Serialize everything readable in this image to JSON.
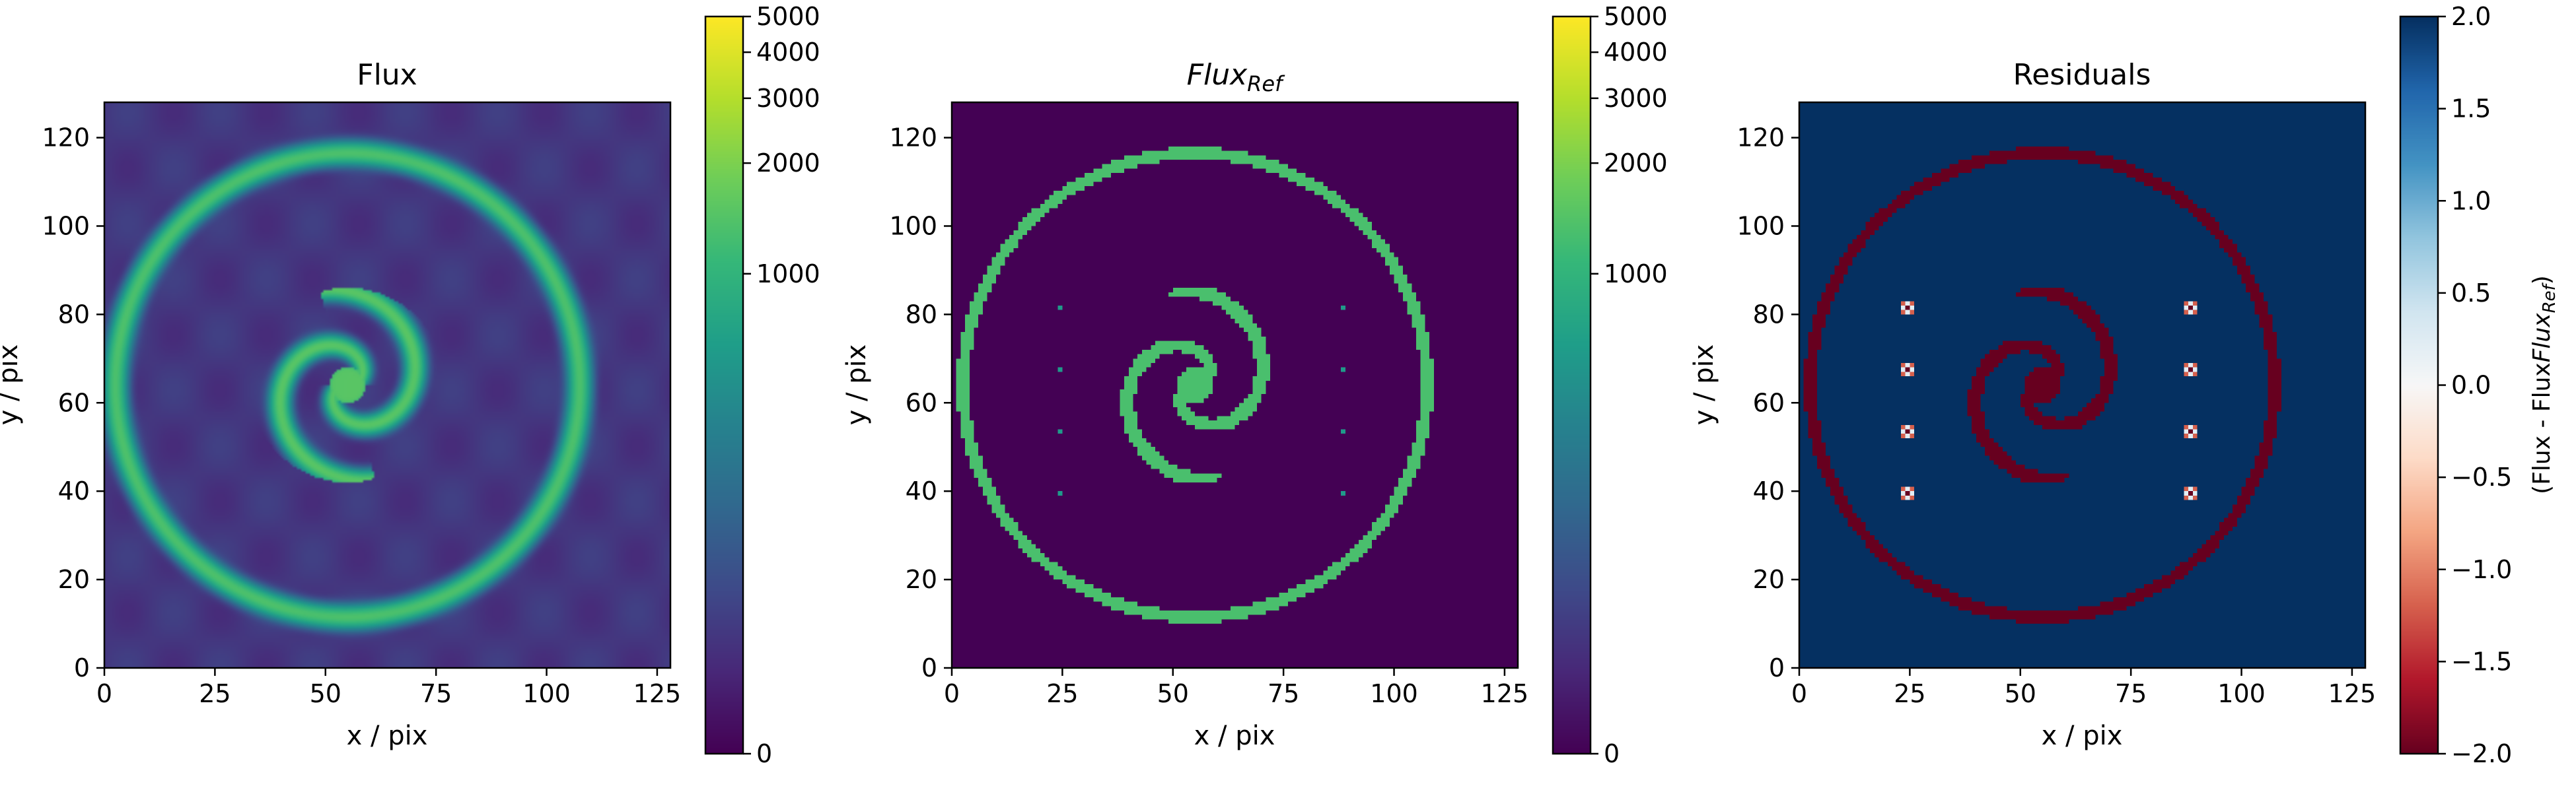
{
  "chart_data": [
    {
      "type": "heatmap",
      "title": "Flux",
      "xlabel": "x / pix",
      "ylabel": "y / pix",
      "xlim": [
        0,
        128
      ],
      "ylim": [
        0,
        128
      ],
      "xticks": [
        0,
        25,
        50,
        75,
        100,
        125
      ],
      "yticks": [
        0,
        20,
        40,
        60,
        80,
        100,
        120
      ],
      "colormap": "viridis",
      "scale": "asinh",
      "colorbar": {
        "range": [
          0,
          5000
        ],
        "ticks": [
          0,
          1000,
          2000,
          3000,
          4000,
          5000
        ],
        "label": ""
      },
      "image": {
        "description": "smoothed spiral galaxy model: outer ring plus two-armed inner spiral",
        "background_value": 80,
        "outer_ring": {
          "center": [
            55,
            64
          ],
          "radius": 52,
          "value": 1250
        },
        "spiral": {
          "center": [
            55,
            64
          ],
          "value": 1400,
          "arms": 2
        }
      }
    },
    {
      "type": "heatmap",
      "title": "Flux",
      "title_subscript": "Ref",
      "xlabel": "x / pix",
      "ylabel": "y / pix",
      "xlim": [
        0,
        128
      ],
      "ylim": [
        0,
        128
      ],
      "xticks": [
        0,
        25,
        50,
        75,
        100,
        125
      ],
      "yticks": [
        0,
        20,
        40,
        60,
        80,
        100,
        120
      ],
      "colormap": "viridis",
      "scale": "asinh",
      "colorbar": {
        "range": [
          0,
          5000
        ],
        "ticks": [
          0,
          1000,
          2000,
          3000,
          4000,
          5000
        ],
        "label": ""
      },
      "image": {
        "description": "reference pixel mask: outer ring, two-armed spiral and 8 isolated point sources",
        "background_value": 0,
        "feature_value": 1300,
        "point_value": 600,
        "point_sources": [
          [
            24,
            81
          ],
          [
            24,
            67
          ],
          [
            24,
            53
          ],
          [
            24,
            39
          ],
          [
            88,
            81
          ],
          [
            88,
            67
          ],
          [
            88,
            53
          ],
          [
            88,
            39
          ]
        ]
      }
    },
    {
      "type": "heatmap",
      "title": "Residuals",
      "xlabel": "x / pix",
      "ylabel": "y / pix",
      "xlim": [
        0,
        128
      ],
      "ylim": [
        0,
        128
      ],
      "xticks": [
        0,
        25,
        50,
        75,
        100,
        125
      ],
      "yticks": [
        0,
        20,
        40,
        60,
        80,
        100,
        120
      ],
      "colormap": "RdBu",
      "colorbar": {
        "range": [
          -2.0,
          2.0
        ],
        "ticks": [
          -2.0,
          -1.5,
          -1.0,
          -0.5,
          0.0,
          0.5,
          1.0,
          1.5,
          2.0
        ],
        "tick_labels": [
          "−2.0",
          "−1.5",
          "−1.0",
          "−0.5",
          "0.0",
          "0.5",
          "1.0",
          "1.5",
          "2.0"
        ],
        "label": "(Flux - Flux",
        "label_subscript": "Ref",
        "label_suffix": ")"
      },
      "image": {
        "description": "residuals saturated at +2 everywhere except ring/spiral pixels at -2; point sources show mixed small residuals",
        "background_value": 2.0,
        "feature_value": -2.0
      }
    }
  ]
}
